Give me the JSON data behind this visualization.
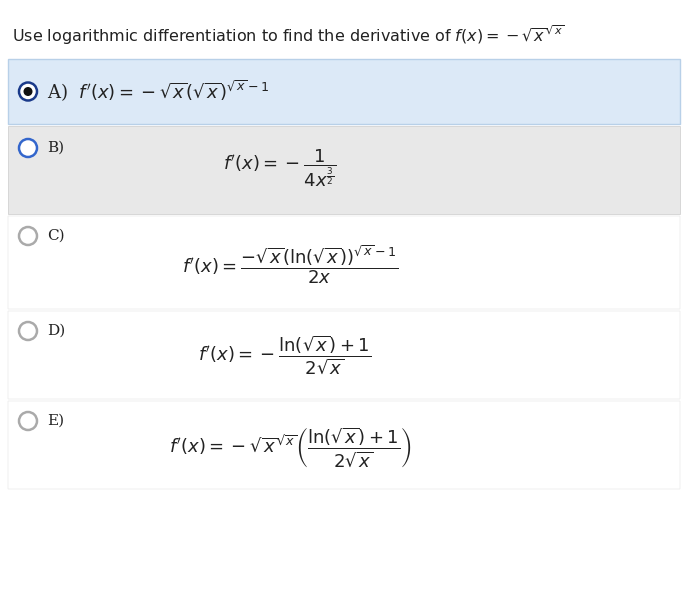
{
  "title_text": "Use logarithmic differentiation to find the derivative of $f(x) = -\\sqrt{x}^{\\sqrt{x}}$",
  "title_fontsize": 11.5,
  "bg_color": "#ffffff",
  "highlight_bg": "#dce9f7",
  "highlight_edge": "#b8d0e8",
  "gray_bg": "#e8e8e8",
  "gray_edge": "#cccccc",
  "white_bg": "#f5f5f5",
  "radio_edge_dark": "#1a3a8a",
  "radio_edge_light": "#aaaaaa",
  "radio_fill_dark": "#111111",
  "text_color": "#222222",
  "options": [
    "A",
    "B",
    "C",
    "D",
    "E"
  ],
  "formula_fontsize": 13,
  "label_fontsize": 11
}
